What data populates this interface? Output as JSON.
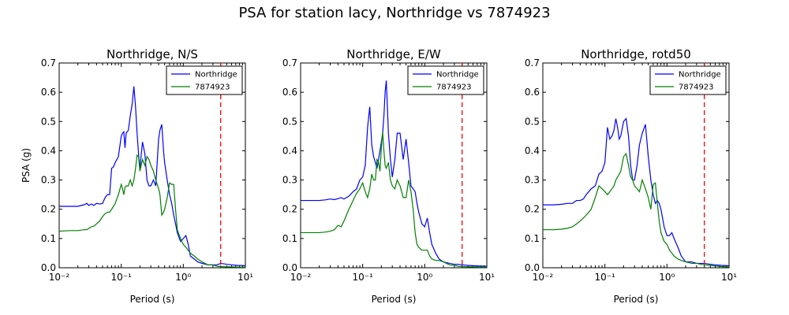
{
  "suptitle": "PSA for station lacy, Northridge vs 7874923",
  "colors": {
    "series1": "#0000ff",
    "series2": "#008000",
    "vline": "#ff0000"
  },
  "chart_data": [
    {
      "type": "line",
      "title": "Northridge, N/S",
      "xlabel": "Period (s)",
      "ylabel": "PSA (g)",
      "xscale": "log",
      "xlim": [
        0.01,
        10
      ],
      "ylim": [
        0,
        0.7
      ],
      "xtick_labels": [
        "10⁻²",
        "10⁻¹",
        "10⁰",
        "10¹"
      ],
      "ytick_labels": [
        "0.0",
        "0.1",
        "0.2",
        "0.3",
        "0.4",
        "0.5",
        "0.6",
        "0.7"
      ],
      "legend": "top-right",
      "vline_x": 4.0,
      "series": [
        {
          "name": "Northridge",
          "x": [
            0.01,
            0.015,
            0.02,
            0.025,
            0.028,
            0.03,
            0.033,
            0.036,
            0.04,
            0.045,
            0.05,
            0.055,
            0.06,
            0.065,
            0.07,
            0.075,
            0.08,
            0.09,
            0.1,
            0.105,
            0.11,
            0.115,
            0.12,
            0.13,
            0.14,
            0.15,
            0.16,
            0.17,
            0.18,
            0.19,
            0.2,
            0.22,
            0.24,
            0.26,
            0.28,
            0.3,
            0.33,
            0.36,
            0.4,
            0.42,
            0.45,
            0.48,
            0.5,
            0.55,
            0.6,
            0.65,
            0.7,
            0.75,
            0.8,
            0.9,
            1.0,
            1.1,
            1.2,
            1.3,
            1.5,
            1.7,
            2.0,
            2.5,
            3.0,
            3.5,
            4.0,
            5.0,
            6.0,
            7.5,
            10.0
          ],
          "values": [
            0.21,
            0.21,
            0.21,
            0.215,
            0.22,
            0.213,
            0.218,
            0.213,
            0.22,
            0.218,
            0.22,
            0.24,
            0.25,
            0.25,
            0.34,
            0.345,
            0.36,
            0.38,
            0.45,
            0.46,
            0.465,
            0.41,
            0.46,
            0.47,
            0.52,
            0.56,
            0.62,
            0.55,
            0.46,
            0.39,
            0.34,
            0.43,
            0.39,
            0.3,
            0.28,
            0.28,
            0.3,
            0.28,
            0.44,
            0.47,
            0.49,
            0.4,
            0.36,
            0.3,
            0.25,
            0.22,
            0.18,
            0.15,
            0.12,
            0.09,
            0.1,
            0.11,
            0.08,
            0.04,
            0.03,
            0.02,
            0.015,
            0.01,
            0.01,
            0.01,
            0.015,
            0.012,
            0.01,
            0.008,
            0.007
          ]
        },
        {
          "name": "7874923",
          "x": [
            0.01,
            0.015,
            0.02,
            0.025,
            0.028,
            0.03,
            0.033,
            0.036,
            0.04,
            0.045,
            0.05,
            0.055,
            0.06,
            0.065,
            0.07,
            0.075,
            0.08,
            0.09,
            0.1,
            0.105,
            0.11,
            0.115,
            0.12,
            0.13,
            0.14,
            0.15,
            0.16,
            0.17,
            0.18,
            0.19,
            0.2,
            0.22,
            0.24,
            0.26,
            0.28,
            0.3,
            0.33,
            0.36,
            0.4,
            0.42,
            0.45,
            0.48,
            0.5,
            0.55,
            0.6,
            0.65,
            0.7,
            0.75,
            0.8,
            0.9,
            1.0,
            1.1,
            1.2,
            1.3,
            1.5,
            1.7,
            2.0,
            2.5,
            3.0,
            3.5,
            4.0,
            5.0,
            6.0,
            7.5,
            10.0
          ],
          "values": [
            0.125,
            0.127,
            0.127,
            0.13,
            0.13,
            0.135,
            0.14,
            0.142,
            0.15,
            0.16,
            0.175,
            0.185,
            0.19,
            0.19,
            0.2,
            0.21,
            0.22,
            0.25,
            0.285,
            0.27,
            0.25,
            0.275,
            0.28,
            0.28,
            0.3,
            0.28,
            0.3,
            0.34,
            0.385,
            0.38,
            0.33,
            0.37,
            0.35,
            0.38,
            0.37,
            0.35,
            0.33,
            0.3,
            0.27,
            0.25,
            0.18,
            0.19,
            0.2,
            0.24,
            0.29,
            0.285,
            0.285,
            0.2,
            0.13,
            0.1,
            0.08,
            0.07,
            0.06,
            0.05,
            0.04,
            0.03,
            0.02,
            0.01,
            0.01,
            0.005,
            0.004,
            0.003,
            0.003,
            0.002,
            0.002
          ]
        }
      ]
    },
    {
      "type": "line",
      "title": "Northridge, E/W",
      "xlabel": "Period (s)",
      "ylabel": "",
      "xscale": "log",
      "xlim": [
        0.01,
        10
      ],
      "ylim": [
        0,
        0.7
      ],
      "xtick_labels": [
        "10⁻²",
        "10⁻¹",
        "10⁰",
        "10¹"
      ],
      "ytick_labels": [
        "0.0",
        "0.1",
        "0.2",
        "0.3",
        "0.4",
        "0.5",
        "0.6",
        "0.7"
      ],
      "legend": "top-right",
      "vline_x": 4.0,
      "series": [
        {
          "name": "Northridge",
          "x": [
            0.01,
            0.015,
            0.02,
            0.025,
            0.03,
            0.035,
            0.04,
            0.045,
            0.05,
            0.06,
            0.07,
            0.08,
            0.09,
            0.1,
            0.11,
            0.12,
            0.13,
            0.14,
            0.15,
            0.16,
            0.17,
            0.18,
            0.19,
            0.2,
            0.21,
            0.22,
            0.23,
            0.24,
            0.25,
            0.26,
            0.28,
            0.3,
            0.33,
            0.36,
            0.4,
            0.45,
            0.5,
            0.55,
            0.6,
            0.65,
            0.7,
            0.75,
            0.8,
            0.9,
            1.0,
            1.1,
            1.2,
            1.3,
            1.5,
            1.7,
            2.0,
            2.5,
            3.0,
            3.5,
            4.0,
            5.0,
            6.0,
            7.5,
            10.0
          ],
          "values": [
            0.23,
            0.23,
            0.23,
            0.232,
            0.235,
            0.233,
            0.236,
            0.24,
            0.235,
            0.245,
            0.26,
            0.27,
            0.3,
            0.31,
            0.35,
            0.48,
            0.55,
            0.42,
            0.38,
            0.36,
            0.34,
            0.37,
            0.4,
            0.43,
            0.46,
            0.52,
            0.6,
            0.64,
            0.55,
            0.46,
            0.37,
            0.31,
            0.37,
            0.46,
            0.46,
            0.37,
            0.44,
            0.36,
            0.28,
            0.27,
            0.26,
            0.22,
            0.19,
            0.15,
            0.14,
            0.17,
            0.12,
            0.08,
            0.05,
            0.03,
            0.02,
            0.015,
            0.012,
            0.012,
            0.01,
            0.008,
            0.007,
            0.006,
            0.005
          ]
        },
        {
          "name": "7874923",
          "x": [
            0.01,
            0.015,
            0.02,
            0.025,
            0.03,
            0.035,
            0.04,
            0.045,
            0.05,
            0.06,
            0.07,
            0.08,
            0.09,
            0.1,
            0.11,
            0.12,
            0.13,
            0.14,
            0.15,
            0.16,
            0.17,
            0.18,
            0.19,
            0.2,
            0.21,
            0.22,
            0.23,
            0.24,
            0.25,
            0.26,
            0.28,
            0.3,
            0.33,
            0.36,
            0.4,
            0.45,
            0.5,
            0.55,
            0.6,
            0.65,
            0.7,
            0.75,
            0.8,
            0.9,
            1.0,
            1.1,
            1.2,
            1.3,
            1.5,
            1.7,
            2.0,
            2.5,
            3.0,
            3.5,
            4.0,
            5.0,
            6.0,
            7.5,
            10.0
          ],
          "values": [
            0.12,
            0.12,
            0.12,
            0.122,
            0.125,
            0.13,
            0.145,
            0.14,
            0.16,
            0.2,
            0.23,
            0.255,
            0.27,
            0.29,
            0.26,
            0.24,
            0.27,
            0.32,
            0.3,
            0.3,
            0.37,
            0.36,
            0.33,
            0.41,
            0.465,
            0.4,
            0.35,
            0.34,
            0.35,
            0.36,
            0.3,
            0.28,
            0.27,
            0.3,
            0.28,
            0.24,
            0.24,
            0.3,
            0.26,
            0.2,
            0.12,
            0.08,
            0.07,
            0.06,
            0.06,
            0.06,
            0.04,
            0.03,
            0.025,
            0.025,
            0.02,
            0.01,
            0.008,
            0.005,
            0.004,
            0.003,
            0.003,
            0.002,
            0.002
          ]
        }
      ]
    },
    {
      "type": "line",
      "title": "Northridge, rotd50",
      "xlabel": "Period (s)",
      "ylabel": "",
      "xscale": "log",
      "xlim": [
        0.01,
        10
      ],
      "ylim": [
        0,
        0.7
      ],
      "xtick_labels": [
        "10⁻²",
        "10⁻¹",
        "10⁰",
        "10¹"
      ],
      "ytick_labels": [
        "0.0",
        "0.1",
        "0.2",
        "0.3",
        "0.4",
        "0.5",
        "0.6",
        "0.7"
      ],
      "legend": "top-right",
      "vline_x": 4.0,
      "series": [
        {
          "name": "Northridge",
          "x": [
            0.01,
            0.015,
            0.02,
            0.025,
            0.03,
            0.035,
            0.04,
            0.045,
            0.05,
            0.055,
            0.06,
            0.07,
            0.08,
            0.09,
            0.1,
            0.11,
            0.12,
            0.13,
            0.14,
            0.15,
            0.16,
            0.17,
            0.18,
            0.2,
            0.22,
            0.24,
            0.26,
            0.28,
            0.3,
            0.33,
            0.36,
            0.4,
            0.45,
            0.5,
            0.55,
            0.6,
            0.65,
            0.7,
            0.75,
            0.8,
            0.9,
            1.0,
            1.1,
            1.2,
            1.3,
            1.5,
            1.7,
            2.0,
            2.5,
            3.0,
            3.5,
            4.0,
            5.0,
            6.0,
            7.5,
            10.0
          ],
          "values": [
            0.215,
            0.215,
            0.217,
            0.22,
            0.22,
            0.23,
            0.23,
            0.235,
            0.25,
            0.26,
            0.27,
            0.28,
            0.32,
            0.33,
            0.36,
            0.48,
            0.44,
            0.45,
            0.47,
            0.51,
            0.48,
            0.44,
            0.45,
            0.5,
            0.51,
            0.45,
            0.35,
            0.3,
            0.3,
            0.35,
            0.42,
            0.46,
            0.49,
            0.38,
            0.3,
            0.25,
            0.22,
            0.23,
            0.22,
            0.2,
            0.14,
            0.11,
            0.11,
            0.12,
            0.1,
            0.07,
            0.04,
            0.02,
            0.02,
            0.015,
            0.015,
            0.015,
            0.012,
            0.01,
            0.008,
            0.007
          ]
        },
        {
          "name": "7874923",
          "x": [
            0.01,
            0.015,
            0.02,
            0.025,
            0.03,
            0.035,
            0.04,
            0.045,
            0.05,
            0.055,
            0.06,
            0.07,
            0.08,
            0.09,
            0.1,
            0.11,
            0.12,
            0.13,
            0.14,
            0.15,
            0.16,
            0.17,
            0.18,
            0.2,
            0.22,
            0.24,
            0.26,
            0.28,
            0.3,
            0.33,
            0.36,
            0.4,
            0.45,
            0.5,
            0.55,
            0.6,
            0.65,
            0.7,
            0.75,
            0.8,
            0.9,
            1.0,
            1.1,
            1.2,
            1.3,
            1.5,
            1.7,
            2.0,
            2.5,
            3.0,
            3.5,
            4.0,
            5.0,
            6.0,
            7.5,
            10.0
          ],
          "values": [
            0.13,
            0.13,
            0.132,
            0.135,
            0.14,
            0.15,
            0.16,
            0.17,
            0.18,
            0.19,
            0.2,
            0.24,
            0.28,
            0.27,
            0.26,
            0.25,
            0.26,
            0.27,
            0.28,
            0.3,
            0.31,
            0.32,
            0.33,
            0.38,
            0.39,
            0.35,
            0.31,
            0.3,
            0.28,
            0.27,
            0.26,
            0.3,
            0.27,
            0.24,
            0.2,
            0.285,
            0.29,
            0.22,
            0.16,
            0.12,
            0.09,
            0.08,
            0.06,
            0.05,
            0.04,
            0.03,
            0.025,
            0.02,
            0.015,
            0.015,
            0.012,
            0.01,
            0.008,
            0.006,
            0.004,
            0.003
          ]
        }
      ]
    }
  ]
}
